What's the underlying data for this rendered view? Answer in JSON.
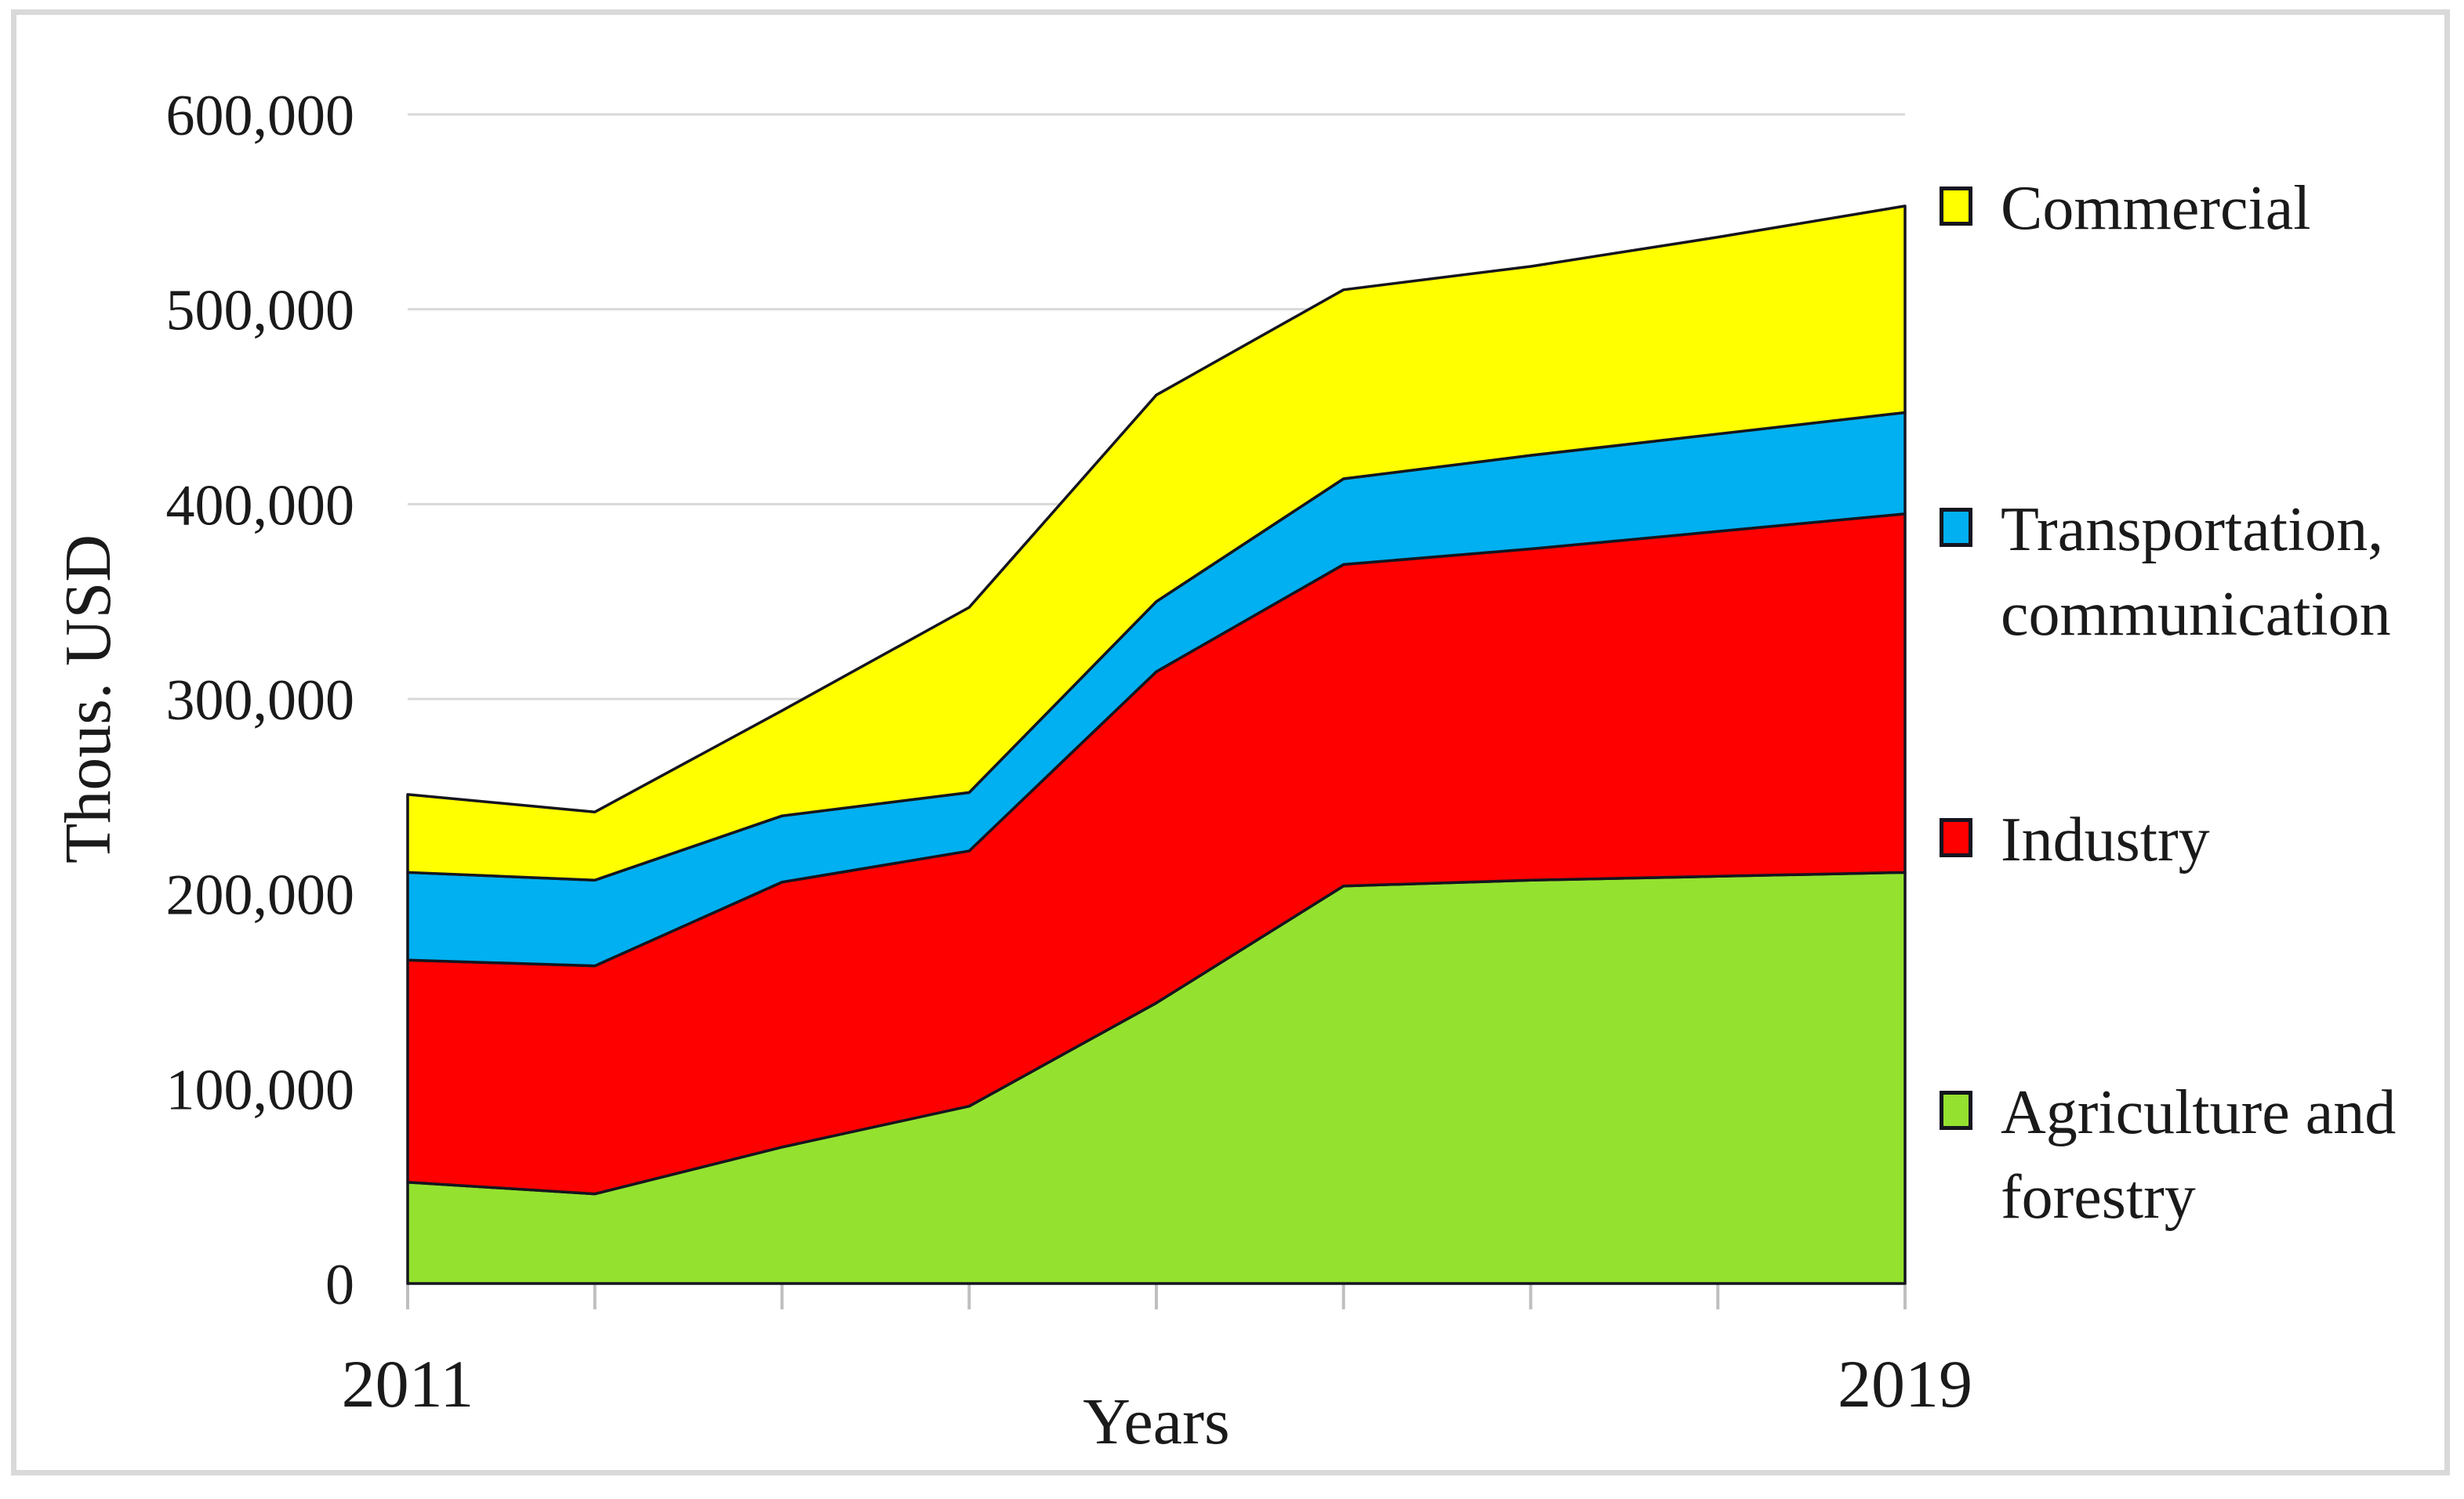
{
  "figure": {
    "ylabel": "Thous. USD",
    "xlabel": "Years"
  },
  "y_axis": {
    "tick_labels": [
      "600,000",
      "500,000",
      "400,000",
      "300,000",
      "200,000",
      "100,000",
      "0"
    ],
    "tick_values": [
      600000,
      500000,
      400000,
      300000,
      200000,
      100000,
      0
    ],
    "min": 0,
    "max": 600000
  },
  "x_axis": {
    "shown_labels": [
      "2011",
      "2019"
    ],
    "years": [
      2011,
      2012,
      2013,
      2014,
      2015,
      2016,
      2017,
      2018,
      2019
    ]
  },
  "legend": {
    "items": [
      {
        "label": "Commercial",
        "series": "commercial"
      },
      {
        "label": "Transportation,\ncommunication",
        "series": "transportation"
      },
      {
        "label": "Industry",
        "series": "industry"
      },
      {
        "label": "Agriculture and\nforestry",
        "series": "agriculture"
      }
    ]
  },
  "chart_data": {
    "type": "area",
    "stacked": true,
    "title": "",
    "xlabel": "Years",
    "ylabel": "Thous. USD",
    "ylim": [
      0,
      600000
    ],
    "grid": true,
    "legend_position": "right",
    "x": [
      2011,
      2012,
      2013,
      2014,
      2015,
      2016,
      2017,
      2018,
      2019
    ],
    "series": [
      {
        "name": "agriculture",
        "label": "Agriculture and forestry",
        "color": "#94e22f",
        "values": [
          52000,
          46000,
          70000,
          91000,
          144000,
          204000,
          207000,
          209000,
          211000
        ]
      },
      {
        "name": "industry",
        "label": "Industry",
        "color": "#fe0000",
        "values": [
          114000,
          117000,
          136000,
          131000,
          170000,
          165000,
          170000,
          177000,
          184000
        ]
      },
      {
        "name": "transportation",
        "label": "Transportation, communication",
        "color": "#00b0f0",
        "values": [
          45000,
          44000,
          34000,
          30000,
          36000,
          44000,
          48000,
          50000,
          52000
        ]
      },
      {
        "name": "commercial",
        "label": "Commercial",
        "color": "#ffff00",
        "values": [
          40000,
          35000,
          54000,
          95000,
          106000,
          97000,
          97000,
          101000,
          106000
        ]
      }
    ],
    "stacked_totals": [
      251000,
      242000,
      294000,
      347000,
      456000,
      510000,
      522000,
      537000,
      553000
    ]
  },
  "style": {
    "outline_color": "#15151f",
    "gridline_color": "#d9d9d9",
    "tick_color": "#bfbfbf",
    "text_color": "#1a1a1a",
    "frame_color": "#d9d9d9"
  }
}
